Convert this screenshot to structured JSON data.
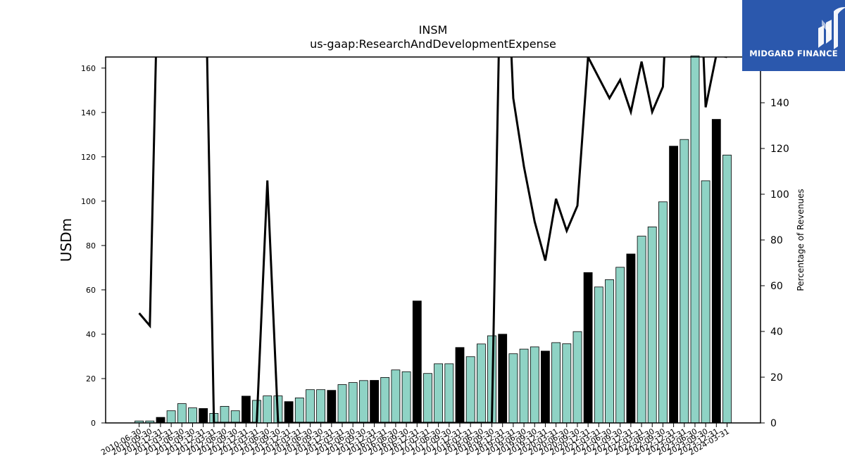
{
  "brand": {
    "name": "MIDGARD FINANCE",
    "colors": {
      "background": "#2b58ad",
      "text": "#ffffff"
    }
  },
  "chart_data": {
    "type": "bar",
    "title": "INSM",
    "subtitle": "us-gaap:ResearchAndDevelopmentExpense",
    "ylabel": "USDm",
    "y2label": "Percentage of Revenues",
    "ylim": [
      0,
      165
    ],
    "y2lim": [
      0,
      160
    ],
    "yticks": [
      0,
      20,
      40,
      60,
      80,
      100,
      120,
      140,
      160
    ],
    "y2ticks": [
      0,
      20,
      40,
      60,
      80,
      100,
      120,
      140
    ],
    "colors": {
      "quarter": "#8fd3c5",
      "annual": "#000000",
      "line": "#000000"
    },
    "categories": [
      "2010-06-30",
      "2010-09-30",
      "2010-12-31",
      "2011-03-31",
      "2011-06-30",
      "2011-09-30",
      "2011-12-31",
      "2012-03-31",
      "2012-06-30",
      "2012-09-30",
      "2012-12-31",
      "2013-03-31",
      "2013-06-30",
      "2013-09-30",
      "2013-12-31",
      "2014-03-31",
      "2014-06-30",
      "2014-09-30",
      "2014-12-31",
      "2015-03-31",
      "2015-06-30",
      "2015-09-30",
      "2015-12-31",
      "2016-03-31",
      "2016-06-30",
      "2016-09-30",
      "2016-12-31",
      "2017-03-31",
      "2017-06-30",
      "2017-09-30",
      "2017-12-31",
      "2018-03-31",
      "2018-06-30",
      "2018-09-30",
      "2018-12-31",
      "2019-03-31",
      "2019-06-30",
      "2019-09-30",
      "2019-12-31",
      "2020-03-31",
      "2020-06-30",
      "2020-09-30",
      "2020-12-31",
      "2021-03-31",
      "2021-06-30",
      "2021-09-30",
      "2021-12-31",
      "2022-03-31",
      "2022-06-30",
      "2022-09-30",
      "2022-12-31",
      "2023-03-31",
      "2023-06-30",
      "2023-09-30",
      "2023-12-31",
      "2024-03-31"
    ],
    "values": [
      0.9,
      0.9,
      2.5,
      5.5,
      8.7,
      6.8,
      6.5,
      4.3,
      7.5,
      5.5,
      12.1,
      10.2,
      12.2,
      12.2,
      9.6,
      11.3,
      15.0,
      15.0,
      14.7,
      17.3,
      18.2,
      19.1,
      19.2,
      20.5,
      23.9,
      23.1,
      55.0,
      22.3,
      26.7,
      26.7,
      34.0,
      29.9,
      35.6,
      39.3,
      40.0,
      31.2,
      33.3,
      34.3,
      32.4,
      36.2,
      35.7,
      41.2,
      67.8,
      61.3,
      64.6,
      70.2,
      76.2,
      84.2,
      88.4,
      99.7,
      124.8,
      127.8,
      165.5,
      109.2,
      136.9,
      120.8
    ],
    "annual_flags": [
      0,
      0,
      1,
      0,
      0,
      0,
      1,
      0,
      0,
      0,
      1,
      0,
      0,
      0,
      1,
      0,
      0,
      0,
      1,
      0,
      0,
      0,
      1,
      0,
      0,
      0,
      1,
      0,
      0,
      0,
      1,
      0,
      0,
      0,
      1,
      0,
      0,
      0,
      1,
      0,
      0,
      0,
      1,
      0,
      0,
      0,
      1,
      0,
      0,
      0,
      1,
      0,
      0,
      0,
      1,
      0
    ],
    "line_values": [
      48,
      42.5,
      250,
      250,
      250,
      250,
      250,
      0,
      0,
      0,
      0,
      0,
      106,
      0,
      0,
      0,
      0,
      0,
      0,
      0,
      0,
      0,
      0,
      0,
      0,
      0,
      0,
      0,
      0,
      0,
      0,
      0,
      0,
      0,
      250,
      142,
      112,
      88,
      71,
      98,
      84,
      95,
      160,
      151,
      142,
      150,
      136,
      158,
      136,
      147,
      250,
      250,
      250,
      138,
      161,
      160
    ]
  }
}
